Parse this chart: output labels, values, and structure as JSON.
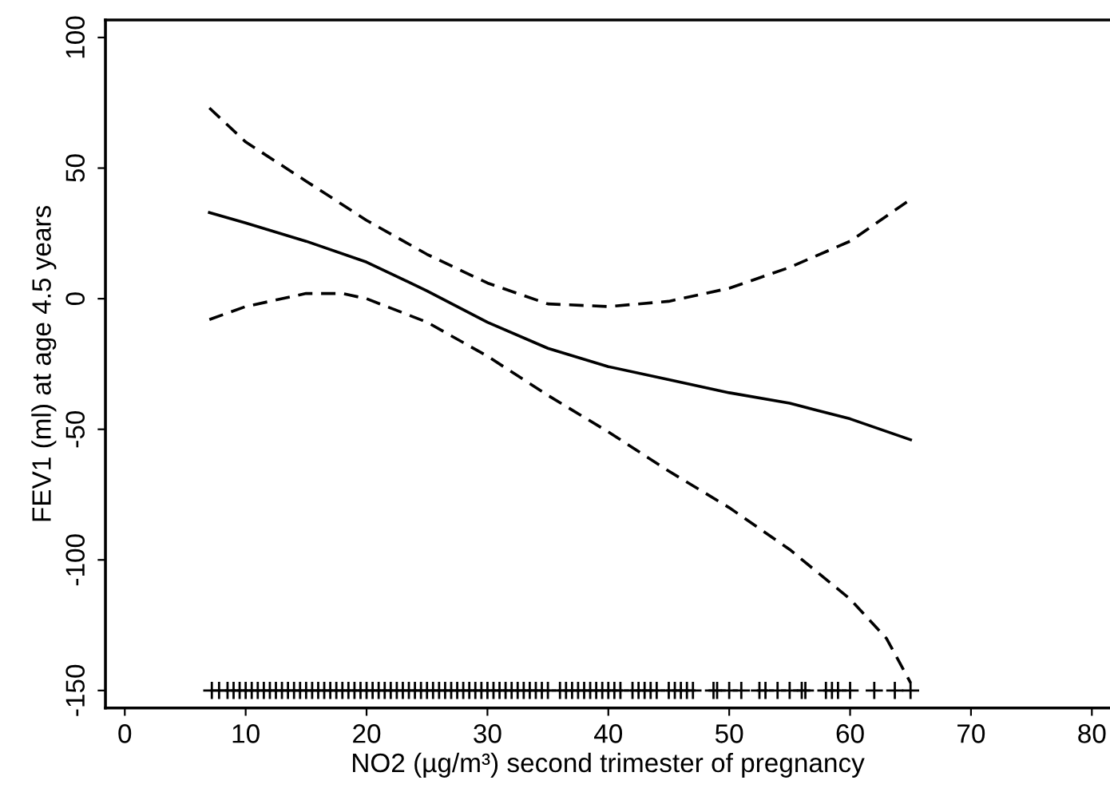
{
  "chart_data": {
    "type": "line",
    "xlabel": "NO2 (µg/m³) second trimester of pregnancy",
    "ylabel": "FEV1 (ml) at age 4.5 years",
    "xlim": [
      -1.6,
      81.5
    ],
    "ylim": [
      -156.7,
      106.7
    ],
    "xticks": [
      0,
      10,
      20,
      30,
      40,
      50,
      60,
      70,
      80
    ],
    "yticks": [
      -150,
      -100,
      -50,
      0,
      50,
      100
    ],
    "grid": false,
    "legend": false,
    "series": [
      {
        "color": "#000000",
        "line_style": "solid",
        "marker": "none",
        "x": [
          7,
          10,
          15,
          20,
          25,
          30,
          35,
          40,
          45,
          50,
          55,
          60,
          65
        ],
        "values": [
          33,
          29,
          22,
          14,
          3,
          -9,
          -19,
          -26,
          -31,
          -36,
          -40,
          -46,
          -54
        ]
      },
      {
        "color": "#000000",
        "line_style": "dashed",
        "marker": "none",
        "x": [
          7,
          10,
          15,
          20,
          25,
          30,
          35,
          40,
          45,
          50,
          55,
          60,
          65
        ],
        "values": [
          73,
          60,
          45,
          30,
          17,
          6,
          -2,
          -3,
          -1,
          4,
          12,
          22,
          38
        ]
      },
      {
        "color": "#000000",
        "line_style": "dashed",
        "marker": "none",
        "x": [
          7,
          10,
          15,
          18,
          20,
          25,
          30,
          35,
          40,
          45,
          50,
          55,
          60,
          63,
          65
        ],
        "values": [
          -8,
          -3,
          2,
          2,
          0,
          -9,
          -22,
          -37,
          -51,
          -66,
          -80,
          -96,
          -115,
          -130,
          -147
        ]
      },
      {
        "type": "scatter",
        "color": "#000000",
        "marker": "cross",
        "x": [
          7.2,
          7.8,
          8.5,
          9,
          9.5,
          10,
          10.5,
          11,
          11.5,
          12,
          12.5,
          13,
          13.5,
          14,
          14.5,
          15,
          15.5,
          16,
          16.5,
          17,
          17.5,
          18,
          18.5,
          19,
          19.5,
          20,
          20.5,
          21,
          21.5,
          22,
          22.5,
          23,
          23.5,
          24,
          24.5,
          25,
          25.5,
          26,
          26.5,
          27,
          27.5,
          28,
          28.5,
          29,
          29.5,
          30,
          30.5,
          31,
          31.5,
          32,
          32.5,
          33,
          33.5,
          34,
          34.5,
          35,
          36,
          36.5,
          37,
          37.5,
          38,
          38.5,
          39,
          39.5,
          40,
          40.5,
          41,
          42,
          42.5,
          43,
          43.5,
          44,
          45,
          45.5,
          46,
          46.5,
          47,
          48.7,
          49,
          50,
          51,
          52.5,
          53,
          54,
          55,
          56,
          56.3,
          58,
          58.5,
          59,
          60,
          62,
          63.7,
          65
        ],
        "values": [
          -150,
          -150,
          -150,
          -150,
          -150,
          -150,
          -150,
          -150,
          -150,
          -150,
          -150,
          -150,
          -150,
          -150,
          -150,
          -150,
          -150,
          -150,
          -150,
          -150,
          -150,
          -150,
          -150,
          -150,
          -150,
          -150,
          -150,
          -150,
          -150,
          -150,
          -150,
          -150,
          -150,
          -150,
          -150,
          -150,
          -150,
          -150,
          -150,
          -150,
          -150,
          -150,
          -150,
          -150,
          -150,
          -150,
          -150,
          -150,
          -150,
          -150,
          -150,
          -150,
          -150,
          -150,
          -150,
          -150,
          -150,
          -150,
          -150,
          -150,
          -150,
          -150,
          -150,
          -150,
          -150,
          -150,
          -150,
          -150,
          -150,
          -150,
          -150,
          -150,
          -150,
          -150,
          -150,
          -150,
          -150,
          -150,
          -150,
          -150,
          -150,
          -150,
          -150,
          -150,
          -150,
          -150,
          -150,
          -150,
          -150,
          -150,
          -150,
          -150,
          -150,
          -150
        ]
      }
    ]
  }
}
